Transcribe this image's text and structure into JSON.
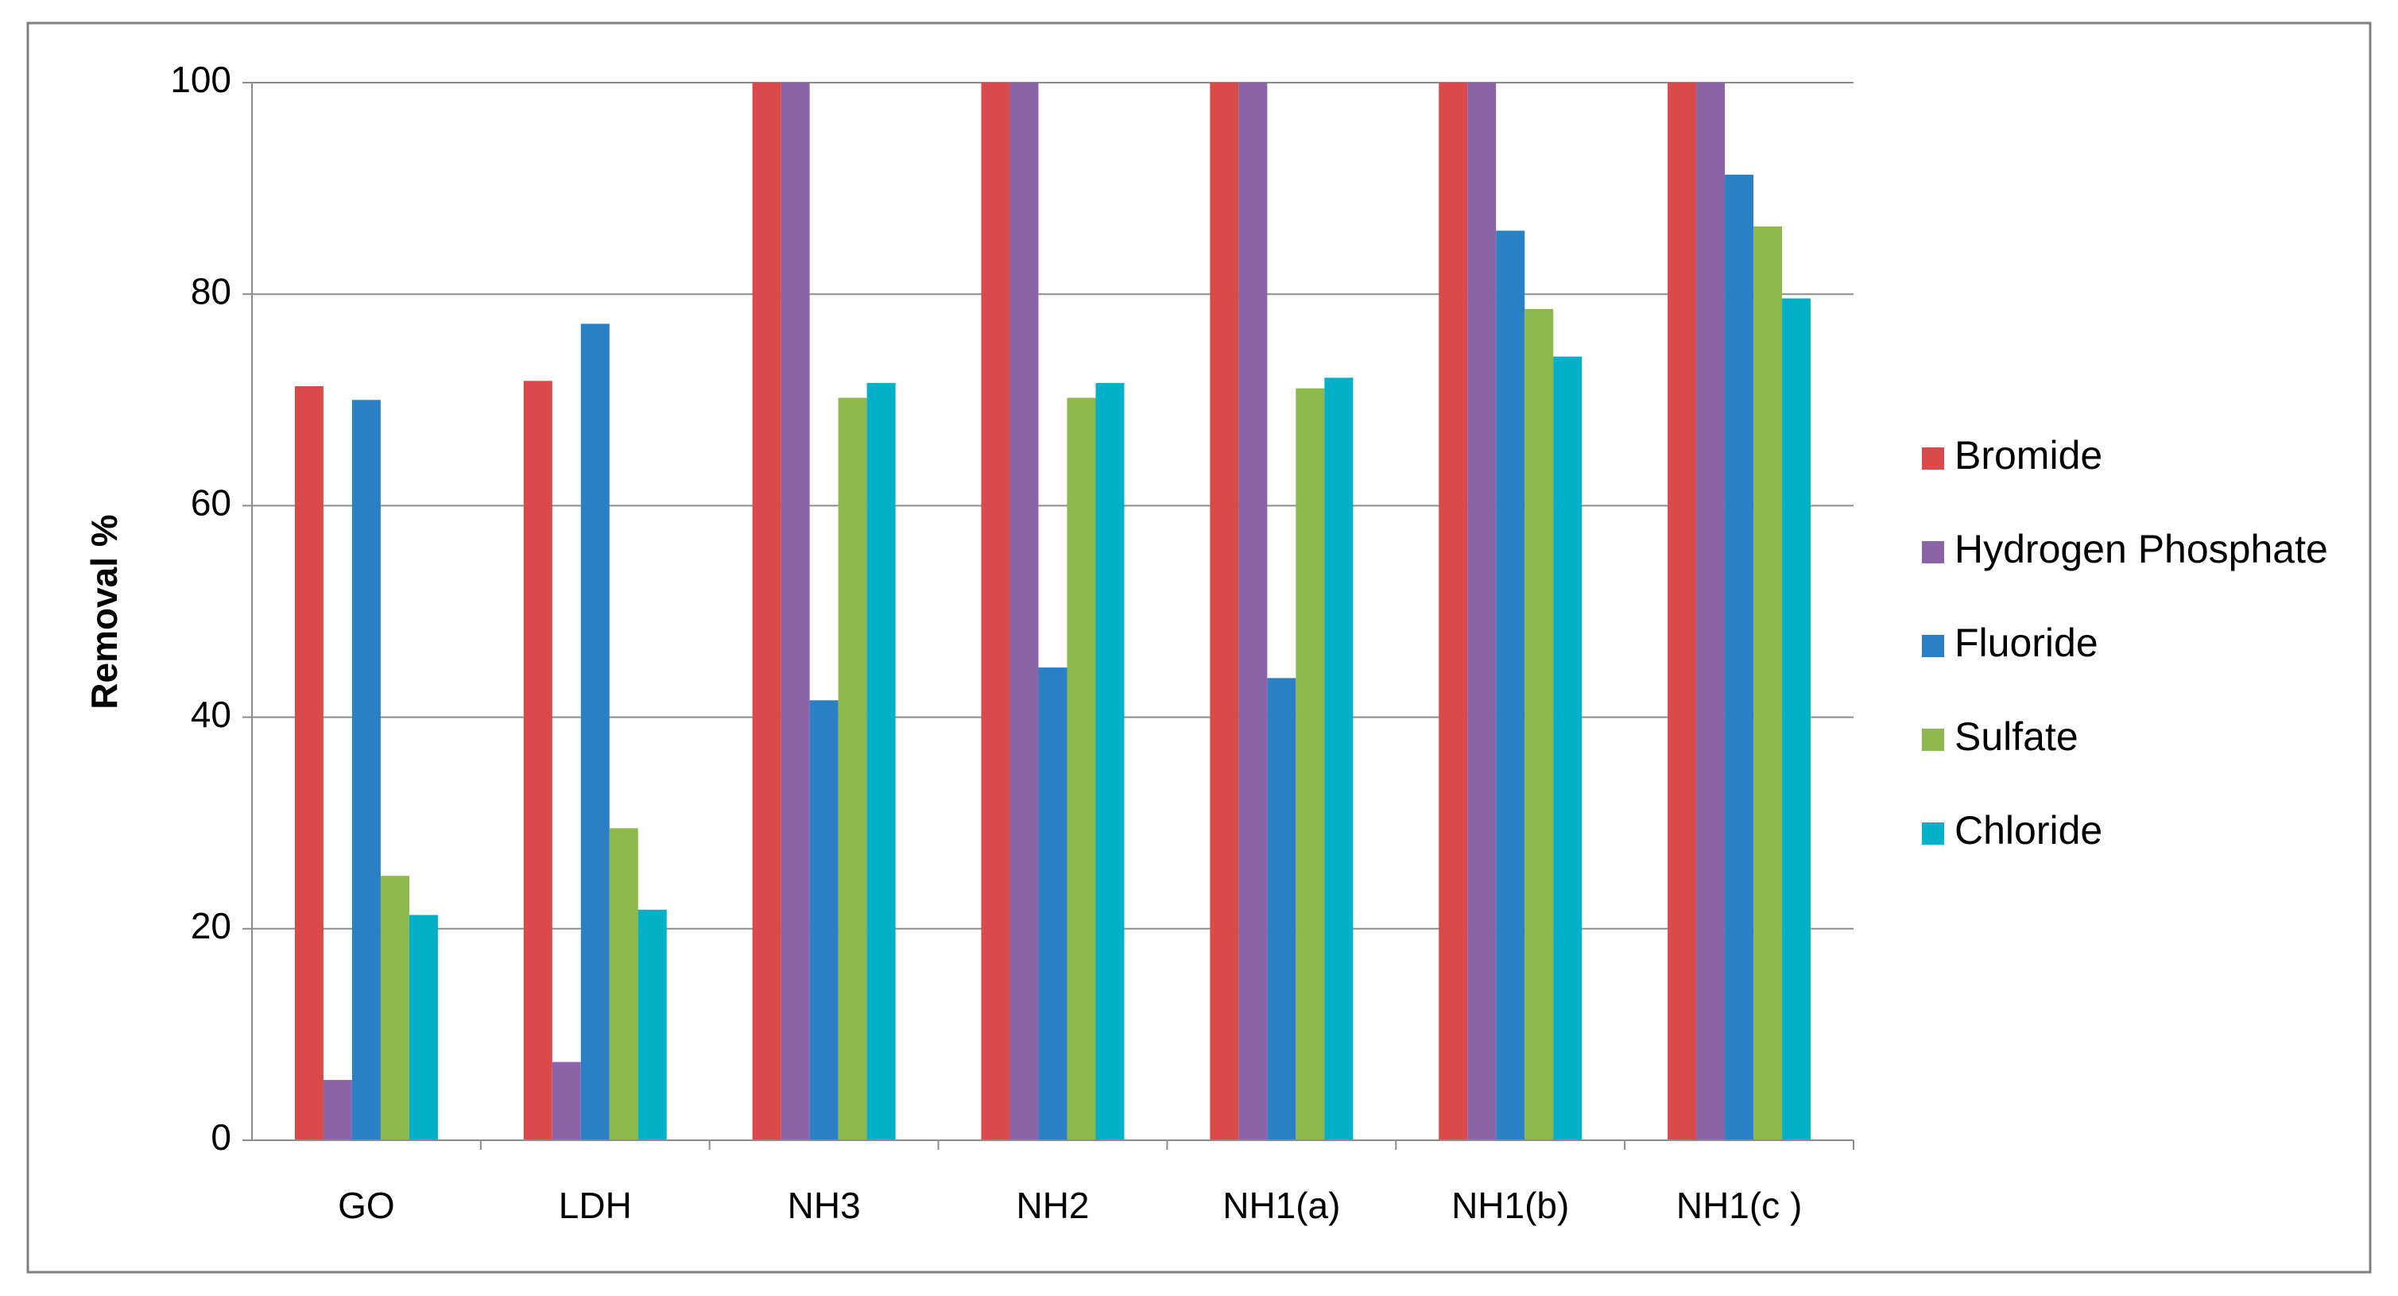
{
  "chart_data": {
    "type": "bar",
    "y_label": "Removal %",
    "categories": [
      "GO",
      "LDH",
      "NH3",
      "NH2",
      "NH1(a)",
      "NH1(b)",
      "NH1(c )"
    ],
    "series": [
      {
        "name": "Bromide",
        "color": "#d84b4a",
        "values": [
          71.3,
          71.8,
          100,
          100,
          100,
          100,
          100
        ]
      },
      {
        "name": "Hydrogen Phosphate",
        "color": "#8b64a8",
        "values": [
          5.7,
          7.4,
          100,
          100,
          100,
          100,
          100
        ]
      },
      {
        "name": "Fluoride",
        "color": "#2980c4",
        "values": [
          70,
          77.2,
          41.6,
          44.7,
          43.7,
          86,
          91.3
        ]
      },
      {
        "name": "Sulfate",
        "color": "#8cb84c",
        "values": [
          25,
          29.5,
          70.2,
          70.2,
          71.1,
          78.6,
          86.4
        ]
      },
      {
        "name": "Chloride",
        "color": "#00b0c8",
        "values": [
          21.3,
          21.8,
          71.6,
          71.6,
          72.1,
          74.1,
          79.6
        ]
      }
    ],
    "ylim": [
      0,
      100
    ],
    "yticks": [
      0,
      20,
      40,
      60,
      80,
      100
    ],
    "grid": true,
    "legend": "right"
  }
}
